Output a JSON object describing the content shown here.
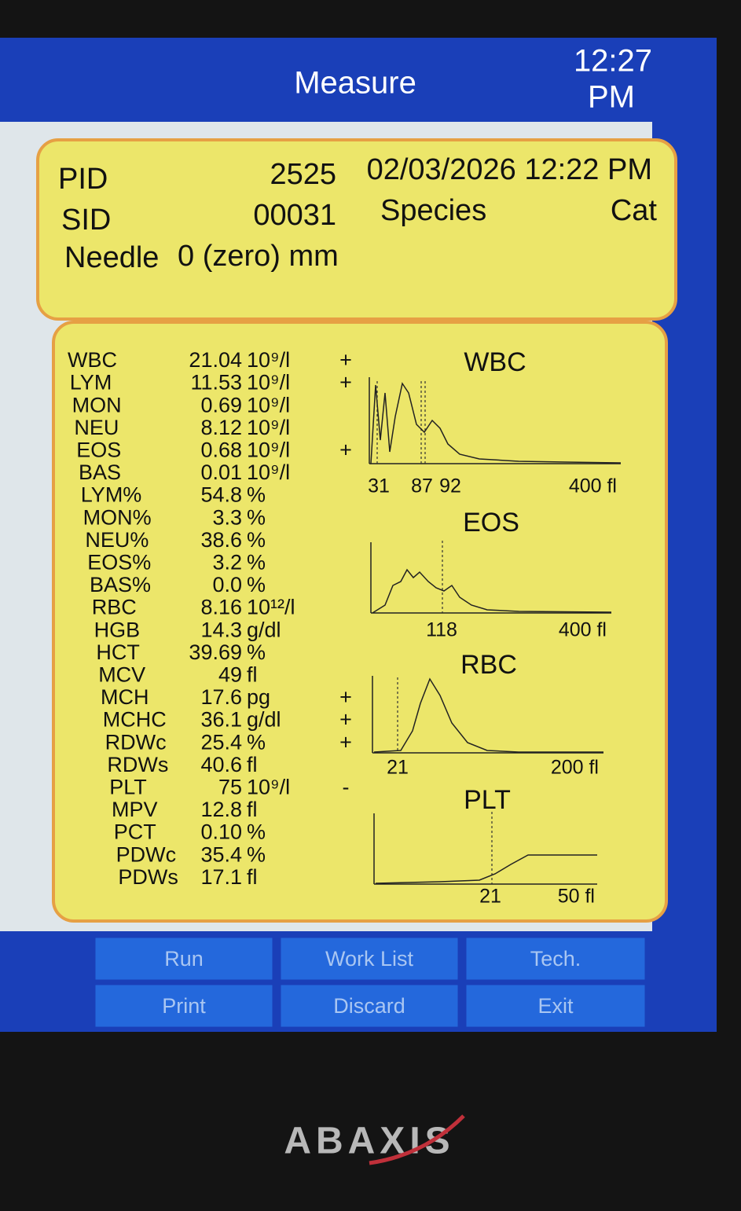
{
  "header": {
    "title": "Measure",
    "time": "12:27",
    "period": "PM"
  },
  "info": {
    "pid_label": "PID",
    "pid": "2525",
    "datetime": "02/03/2026 12:22 PM",
    "sid_label": "SID",
    "sid": "00031",
    "species_label": "Species",
    "species": "Cat",
    "needle_label": "Needle",
    "needle": "0 (zero) mm"
  },
  "results": [
    {
      "name": "WBC",
      "value": "21.04",
      "unit": "10⁹/l",
      "flag": "+"
    },
    {
      "name": "LYM",
      "value": "11.53",
      "unit": "10⁹/l",
      "flag": "+"
    },
    {
      "name": "MON",
      "value": "0.69",
      "unit": "10⁹/l"
    },
    {
      "name": "NEU",
      "value": "8.12",
      "unit": "10⁹/l"
    },
    {
      "name": "EOS",
      "value": "0.68",
      "unit": "10⁹/l",
      "flag": "+"
    },
    {
      "name": "BAS",
      "value": "0.01",
      "unit": "10⁹/l"
    },
    {
      "name": "LYM%",
      "value": "54.8",
      "unit": "%"
    },
    {
      "name": "MON%",
      "value": "3.3",
      "unit": "%"
    },
    {
      "name": "NEU%",
      "value": "38.6",
      "unit": "%"
    },
    {
      "name": "EOS%",
      "value": "3.2",
      "unit": "%"
    },
    {
      "name": "BAS%",
      "value": "0.0",
      "unit": "%"
    },
    {
      "name": "RBC",
      "value": "8.16",
      "unit": "10¹²/l"
    },
    {
      "name": "HGB",
      "value": "14.3",
      "unit": "g/dl"
    },
    {
      "name": "HCT",
      "value": "39.69",
      "unit": "%"
    },
    {
      "name": "MCV",
      "value": "49",
      "unit": "fl"
    },
    {
      "name": "MCH",
      "value": "17.6",
      "unit": "pg",
      "flag": "+"
    },
    {
      "name": "MCHC",
      "value": "36.1",
      "unit": "g/dl",
      "flag": "+"
    },
    {
      "name": "RDWc",
      "value": "25.4",
      "unit": "%",
      "flag": "+"
    },
    {
      "name": "RDWs",
      "value": "40.6",
      "unit": "fl"
    },
    {
      "name": "PLT",
      "value": "75",
      "unit": "10⁹/l",
      "flag": "-"
    },
    {
      "name": "MPV",
      "value": "12.8",
      "unit": "fl"
    },
    {
      "name": "PCT",
      "value": "0.10",
      "unit": "%"
    },
    {
      "name": "PDWc",
      "value": "35.4",
      "unit": "%"
    },
    {
      "name": "PDWs",
      "value": "17.1",
      "unit": "fl"
    }
  ],
  "histograms": [
    {
      "title": "WBC",
      "markers": [
        "31",
        "87",
        "92"
      ],
      "end": "400 fl"
    },
    {
      "title": "EOS",
      "markers": [
        "118"
      ],
      "end": "400 fl"
    },
    {
      "title": "RBC",
      "markers": [
        "21"
      ],
      "end": "200 fl"
    },
    {
      "title": "PLT",
      "markers": [
        "21"
      ],
      "end": "50 fl"
    }
  ],
  "buttons": [
    "Run",
    "Work List",
    "Tech.",
    "Print",
    "Discard",
    "Exit"
  ],
  "brand": "ABAXIS"
}
